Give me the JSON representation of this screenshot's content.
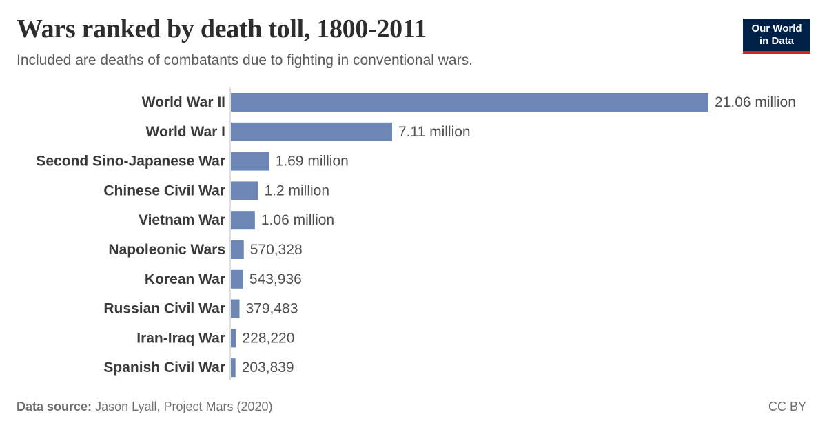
{
  "header": {
    "title": "Wars ranked by death toll, 1800-2011",
    "subtitle": "Included are deaths of combatants due to fighting in conventional wars."
  },
  "logo": {
    "line1": "Our World",
    "line2": "in Data"
  },
  "footer": {
    "source_label": "Data source:",
    "source_text": "Jason Lyall, Project Mars (2020)",
    "license": "CC BY"
  },
  "colors": {
    "bar": "#6d87b4",
    "axis": "#bdbdbd",
    "label": "#3a3a3a",
    "value": "#4f4f4f"
  },
  "chart_data": {
    "type": "bar",
    "orientation": "horizontal",
    "title": "Wars ranked by death toll, 1800-2011",
    "categories": [
      "World War II",
      "World War I",
      "Second Sino-Japanese War",
      "Chinese Civil War",
      "Vietnam War",
      "Napoleonic Wars",
      "Korean War",
      "Russian Civil War",
      "Iran-Iraq War",
      "Spanish Civil War"
    ],
    "values": [
      21060000,
      7110000,
      1690000,
      1200000,
      1060000,
      570328,
      543936,
      379483,
      228220,
      203839
    ],
    "value_labels": [
      "21.06 million",
      "7.11 million",
      "1.69 million",
      "1.2 million",
      "1.06 million",
      "570,328",
      "543,936",
      "379,483",
      "228,220",
      "203,839"
    ],
    "xlim": [
      0,
      21060000
    ],
    "grid": false,
    "legend": "none"
  }
}
